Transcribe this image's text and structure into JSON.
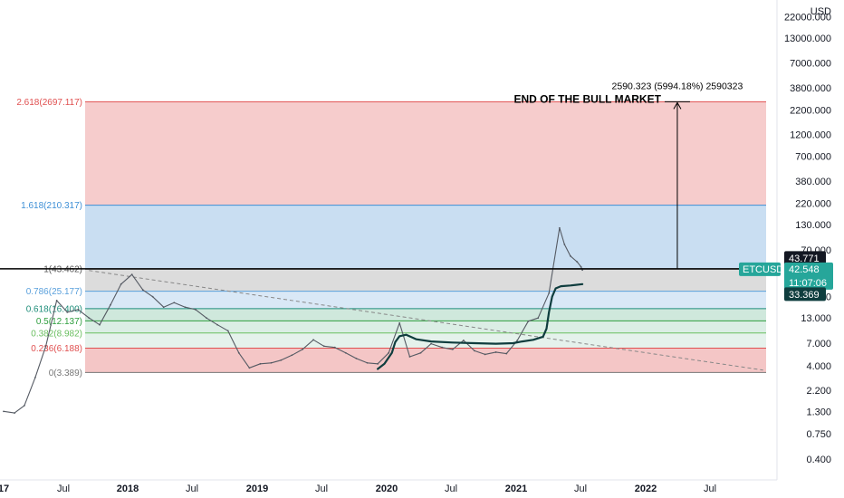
{
  "chart_data": {
    "type": "line",
    "symbol": "ETCUSD",
    "currency": "USD",
    "scale": "log",
    "ylim": [
      0.3,
      29000
    ],
    "y_ticks": [
      "22000.000",
      "13000.000",
      "7000.000",
      "3800.000",
      "2200.000",
      "1200.000",
      "700.000",
      "380.000",
      "220.000",
      "130.000",
      "70.000",
      "40.000",
      "22.000",
      "13.000",
      "7.000",
      "4.000",
      "2.200",
      "1.300",
      "0.750",
      "0.400"
    ],
    "x_ticks": [
      {
        "label": "17",
        "year": true
      },
      {
        "label": "Jul",
        "year": false
      },
      {
        "label": "2018",
        "year": true
      },
      {
        "label": "Jul",
        "year": false
      },
      {
        "label": "2019",
        "year": true
      },
      {
        "label": "Jul",
        "year": false
      },
      {
        "label": "2020",
        "year": true
      },
      {
        "label": "Jul",
        "year": false
      },
      {
        "label": "2021",
        "year": true
      },
      {
        "label": "Jul",
        "year": false
      },
      {
        "label": "2022",
        "year": true
      },
      {
        "label": "Jul",
        "year": false
      }
    ],
    "fib_levels": [
      {
        "label": "2.618(2697.117)",
        "value": 2697.117,
        "color": "#e05050"
      },
      {
        "label": "1.618(210.317)",
        "value": 210.317,
        "color": "#3d8fd6"
      },
      {
        "label": "1(43.462)",
        "value": 43.462,
        "color": "#555555"
      },
      {
        "label": "0.786(25.177)",
        "value": 25.177,
        "color": "#5aa0dc"
      },
      {
        "label": "0.618(16.400)",
        "value": 16.4,
        "color": "#1f8e7a"
      },
      {
        "label": "0.5(12.137)",
        "value": 12.137,
        "color": "#2e9e3e"
      },
      {
        "label": "0.382(8.982)",
        "value": 8.982,
        "color": "#6abf60"
      },
      {
        "label": "0.236(6.188)",
        "value": 6.188,
        "color": "#e05050"
      },
      {
        "label": "0(3.389)",
        "value": 3.389,
        "color": "#777777"
      }
    ],
    "price_series": [
      [
        "2017-01-01",
        1.3
      ],
      [
        "2017-02-01",
        1.25
      ],
      [
        "2017-03-01",
        1.5
      ],
      [
        "2017-04-01",
        3.0
      ],
      [
        "2017-05-01",
        6.5
      ],
      [
        "2017-06-01",
        20
      ],
      [
        "2017-07-01",
        15
      ],
      [
        "2017-08-01",
        16
      ],
      [
        "2017-09-01",
        13
      ],
      [
        "2017-10-01",
        11
      ],
      [
        "2017-11-01",
        18
      ],
      [
        "2017-12-01",
        30
      ],
      [
        "2018-01-01",
        38
      ],
      [
        "2018-02-01",
        26
      ],
      [
        "2018-03-01",
        22
      ],
      [
        "2018-04-01",
        17
      ],
      [
        "2018-05-01",
        19
      ],
      [
        "2018-06-01",
        17
      ],
      [
        "2018-07-01",
        16
      ],
      [
        "2018-08-01",
        13
      ],
      [
        "2018-09-01",
        11
      ],
      [
        "2018-10-01",
        9.5
      ],
      [
        "2018-11-01",
        5.5
      ],
      [
        "2018-12-01",
        3.8
      ],
      [
        "2019-01-01",
        4.2
      ],
      [
        "2019-02-01",
        4.3
      ],
      [
        "2019-03-01",
        4.6
      ],
      [
        "2019-04-01",
        5.2
      ],
      [
        "2019-05-01",
        6.0
      ],
      [
        "2019-06-01",
        7.6
      ],
      [
        "2019-07-01",
        6.5
      ],
      [
        "2019-08-01",
        6.3
      ],
      [
        "2019-09-01",
        5.5
      ],
      [
        "2019-10-01",
        4.8
      ],
      [
        "2019-11-01",
        4.3
      ],
      [
        "2019-12-01",
        4.2
      ],
      [
        "2020-01-01",
        5.5
      ],
      [
        "2020-02-01",
        11.5
      ],
      [
        "2020-03-01",
        5.0
      ],
      [
        "2020-04-01",
        5.5
      ],
      [
        "2020-05-01",
        6.9
      ],
      [
        "2020-06-01",
        6.3
      ],
      [
        "2020-07-01",
        6.0
      ],
      [
        "2020-08-01",
        7.5
      ],
      [
        "2020-09-01",
        5.8
      ],
      [
        "2020-10-01",
        5.3
      ],
      [
        "2020-11-01",
        5.6
      ],
      [
        "2020-12-01",
        5.4
      ],
      [
        "2021-01-01",
        7.5
      ],
      [
        "2021-02-01",
        12
      ],
      [
        "2021-03-01",
        13
      ],
      [
        "2021-04-01",
        24
      ],
      [
        "2021-05-01",
        120
      ],
      [
        "2021-05-15",
        80
      ],
      [
        "2021-06-01",
        60
      ],
      [
        "2021-06-20",
        52
      ],
      [
        "2021-07-01",
        46
      ],
      [
        "2021-07-05",
        42.5
      ]
    ],
    "trendline": {
      "from": [
        "2017-09-01",
        42
      ],
      "to": [
        "2022-12-01",
        3.6
      ],
      "color": "#888888",
      "dashed": true
    },
    "drawn_path": [
      [
        "2019-12-01",
        3.7
      ],
      [
        "2019-12-20",
        4.2
      ],
      [
        "2020-01-10",
        5.5
      ],
      [
        "2020-01-20",
        7.2
      ],
      [
        "2020-02-01",
        8.3
      ],
      [
        "2020-02-20",
        8.6
      ],
      [
        "2020-03-20",
        7.7
      ],
      [
        "2020-05-01",
        7.3
      ],
      [
        "2020-07-01",
        7.1
      ],
      [
        "2020-09-01",
        7.0
      ],
      [
        "2020-11-01",
        6.9
      ],
      [
        "2020-12-20",
        7.0
      ],
      [
        "2021-01-15",
        7.3
      ],
      [
        "2021-02-15",
        7.6
      ],
      [
        "2021-03-15",
        8.2
      ],
      [
        "2021-03-25",
        10
      ],
      [
        "2021-04-01",
        15
      ],
      [
        "2021-04-10",
        22
      ],
      [
        "2021-04-20",
        27
      ],
      [
        "2021-05-05",
        28.5
      ],
      [
        "2021-06-01",
        29
      ],
      [
        "2021-07-05",
        30
      ]
    ],
    "drawn_path_color": "#0f3d3e",
    "annotation": {
      "title": "END OF THE BULL MARKET",
      "measure": "2590.323 (5994.18%) 2590323",
      "arrow_from": [
        "2022-04-01",
        43.8
      ],
      "arrow_to": [
        "2022-04-01",
        2697.117
      ]
    },
    "current": {
      "symbol_label": "ETCUSD",
      "price": "42.548",
      "countdown": "11:07:06",
      "high_tag": "43.771",
      "low_tag": "33.369",
      "horizontal_value": 43.771
    },
    "colors": {
      "upper_zone": "#f6cccc",
      "blue_zone": "#c9def2",
      "grey_zone": "#dcdcdc",
      "green_zone": "#cfe8dc",
      "lower_zone": "#f4c6c6",
      "tag_green": "#26a69a",
      "tag_dark": "#0f3d3e",
      "tag_black": "#131722"
    }
  }
}
